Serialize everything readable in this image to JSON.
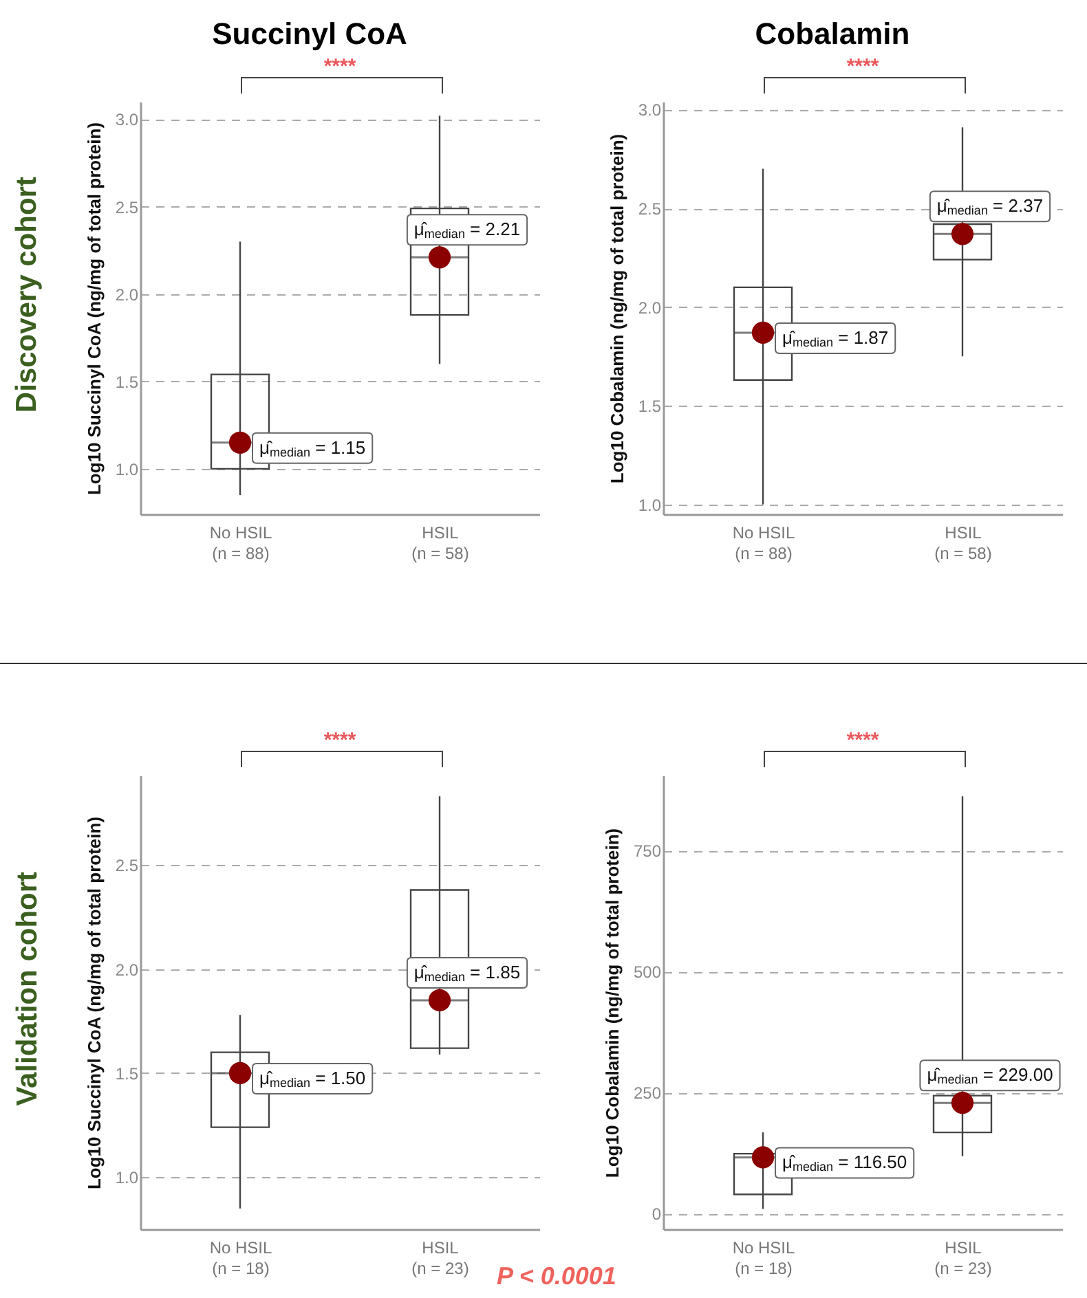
{
  "chart_data": [
    {
      "type": "box",
      "title": "Succinyl CoA",
      "ylabel": "Log10 Succinyl CoA (ng/mg of total protein)",
      "categories": [
        "No HSIL\n(n = 88)",
        "HSIL\n(n = 58)"
      ],
      "boxes": [
        {
          "low": 0.85,
          "q1": 1.0,
          "median": 1.15,
          "q3": 1.54,
          "high": 2.3
        },
        {
          "low": 1.6,
          "q1": 1.88,
          "median": 2.21,
          "q3": 2.49,
          "high": 3.02
        }
      ],
      "series": [
        {
          "type": "scatter",
          "x": [
            "No HSIL\n(n = 88)",
            "HSIL\n(n = 58)"
          ],
          "values": [
            1.15,
            2.21
          ],
          "color": "#8b0000",
          "value_labels": [
            "μ̂$_{median}$ = 1.15",
            "μ̂$_{median}$ = 2.21"
          ]
        }
      ],
      "ylim": [
        0.74,
        3.1
      ],
      "yticks": [
        {
          "value": 1,
          "label": "1.0"
        },
        {
          "value": 1.5,
          "label": "1.5"
        },
        {
          "value": 2,
          "label": "2.0"
        },
        {
          "value": 2.5,
          "label": "2.5"
        },
        {
          "value": 3,
          "label": "3.0"
        }
      ],
      "grid": "y",
      "annotations": [
        "****",
        "Discovery cohort"
      ]
    },
    {
      "type": "box",
      "title": "Cobalamin",
      "ylabel": "Log10 Cobalamin (ng/mg of total protein)",
      "categories": [
        "No HSIL\n(n = 88)",
        "HSIL\n(n = 58)"
      ],
      "boxes": [
        {
          "low": 1.0,
          "q1": 1.63,
          "median": 1.87,
          "q3": 2.1,
          "high": 2.7
        },
        {
          "low": 1.75,
          "q1": 2.24,
          "median": 2.37,
          "q3": 2.42,
          "high": 2.91
        }
      ],
      "series": [
        {
          "type": "scatter",
          "x": [
            "No HSIL\n(n = 88)",
            "HSIL\n(n = 58)"
          ],
          "values": [
            1.87,
            2.37
          ],
          "color": "#8b0000",
          "value_labels": [
            "μ̂$_{median}$ = 1.87",
            "μ̂$_{median}$ = 2.37"
          ]
        }
      ],
      "ylim": [
        0.95,
        3.04
      ],
      "yticks": [
        {
          "value": 1,
          "label": "1.0"
        },
        {
          "value": 1.5,
          "label": "1.5"
        },
        {
          "value": 2,
          "label": "2.0"
        },
        {
          "value": 2.5,
          "label": "2.5"
        },
        {
          "value": 3,
          "label": "3.0"
        }
      ],
      "grid": "y",
      "annotations": [
        "****"
      ]
    },
    {
      "type": "box",
      "ylabel": "Log10 Succinyl CoA (ng/mg of total protein)",
      "categories": [
        "No HSIL\n(n = 18)",
        "HSIL\n(n = 23)"
      ],
      "boxes": [
        {
          "low": 0.85,
          "q1": 1.24,
          "median": 1.5,
          "q3": 1.6,
          "high": 1.78
        },
        {
          "low": 1.59,
          "q1": 1.62,
          "median": 1.85,
          "q3": 2.38,
          "high": 2.83
        }
      ],
      "series": [
        {
          "type": "scatter",
          "x": [
            "No HSIL\n(n = 18)",
            "HSIL\n(n = 23)"
          ],
          "values": [
            1.5,
            1.85
          ],
          "color": "#8b0000",
          "value_labels": [
            "μ̂$_{median}$ = 1.50",
            "μ̂$_{median}$ = 1.85"
          ]
        }
      ],
      "ylim": [
        0.75,
        2.93
      ],
      "yticks": [
        {
          "value": 1,
          "label": "1.0"
        },
        {
          "value": 1.5,
          "label": "1.5"
        },
        {
          "value": 2,
          "label": "2.0"
        },
        {
          "value": 2.5,
          "label": "2.5"
        }
      ],
      "grid": "y",
      "annotations": [
        "****",
        "Validation cohort",
        "P < 0.0001"
      ]
    },
    {
      "type": "box",
      "ylabel": "Log10 Cobalamin (ng/mg of total protein)",
      "categories": [
        "No HSIL\n(n = 18)",
        "HSIL\n(n = 23)"
      ],
      "boxes": [
        {
          "low": 10,
          "q1": 40,
          "median": 116.5,
          "q3": 124,
          "high": 168
        },
        {
          "low": 119,
          "q1": 168,
          "median": 229,
          "q3": 244,
          "high": 862
        }
      ],
      "series": [
        {
          "type": "scatter",
          "x": [
            "No HSIL\n(n = 18)",
            "HSIL\n(n = 23)"
          ],
          "values": [
            116.5,
            229
          ],
          "color": "#8b0000",
          "value_labels": [
            "μ̂$_{median}$ = 116.50",
            "μ̂$_{median}$ = 229.00"
          ]
        }
      ],
      "ylim": [
        -32,
        905
      ],
      "yticks": [
        0,
        250,
        500,
        750
      ],
      "grid": "y",
      "annotations": [
        "****"
      ]
    }
  ]
}
